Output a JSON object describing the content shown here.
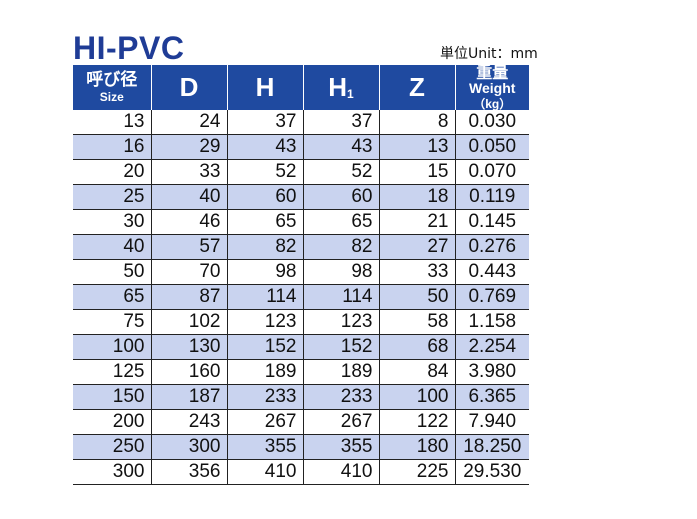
{
  "title": "HI-PVC",
  "unit_label": "単位Unit：mm",
  "header": {
    "size_jp": "呼び径",
    "size_en": "Size",
    "d": "D",
    "h": "H",
    "h1_main": "H",
    "h1_sub": "1",
    "z": "Z",
    "weight_jp": "重量",
    "weight_en": " Weight",
    "weight_unit": "（kg）"
  },
  "colors": {
    "header_bg": "#1f4aa0",
    "alt_row": "#c9d3ef",
    "title": "#1f3c96"
  },
  "rows": [
    {
      "size": "13",
      "d": "24",
      "h": "37",
      "h1": "37",
      "z": "8",
      "weight": "0.030"
    },
    {
      "size": "16",
      "d": "29",
      "h": "43",
      "h1": "43",
      "z": "13",
      "weight": "0.050"
    },
    {
      "size": "20",
      "d": "33",
      "h": "52",
      "h1": "52",
      "z": "15",
      "weight": "0.070"
    },
    {
      "size": "25",
      "d": "40",
      "h": "60",
      "h1": "60",
      "z": "18",
      "weight": "0.119"
    },
    {
      "size": "30",
      "d": "46",
      "h": "65",
      "h1": "65",
      "z": "21",
      "weight": "0.145"
    },
    {
      "size": "40",
      "d": "57",
      "h": "82",
      "h1": "82",
      "z": "27",
      "weight": "0.276"
    },
    {
      "size": "50",
      "d": "70",
      "h": "98",
      "h1": "98",
      "z": "33",
      "weight": "0.443"
    },
    {
      "size": "65",
      "d": "87",
      "h": "114",
      "h1": "114",
      "z": "50",
      "weight": "0.769"
    },
    {
      "size": "75",
      "d": "102",
      "h": "123",
      "h1": "123",
      "z": "58",
      "weight": "1.158"
    },
    {
      "size": "100",
      "d": "130",
      "h": "152",
      "h1": "152",
      "z": "68",
      "weight": "2.254"
    },
    {
      "size": "125",
      "d": "160",
      "h": "189",
      "h1": "189",
      "z": "84",
      "weight": "3.980"
    },
    {
      "size": "150",
      "d": "187",
      "h": "233",
      "h1": "233",
      "z": "100",
      "weight": "6.365"
    },
    {
      "size": "200",
      "d": "243",
      "h": "267",
      "h1": "267",
      "z": "122",
      "weight": "7.940"
    },
    {
      "size": "250",
      "d": "300",
      "h": "355",
      "h1": "355",
      "z": "180",
      "weight": "18.250"
    },
    {
      "size": "300",
      "d": "356",
      "h": "410",
      "h1": "410",
      "z": "225",
      "weight": "29.530"
    }
  ]
}
